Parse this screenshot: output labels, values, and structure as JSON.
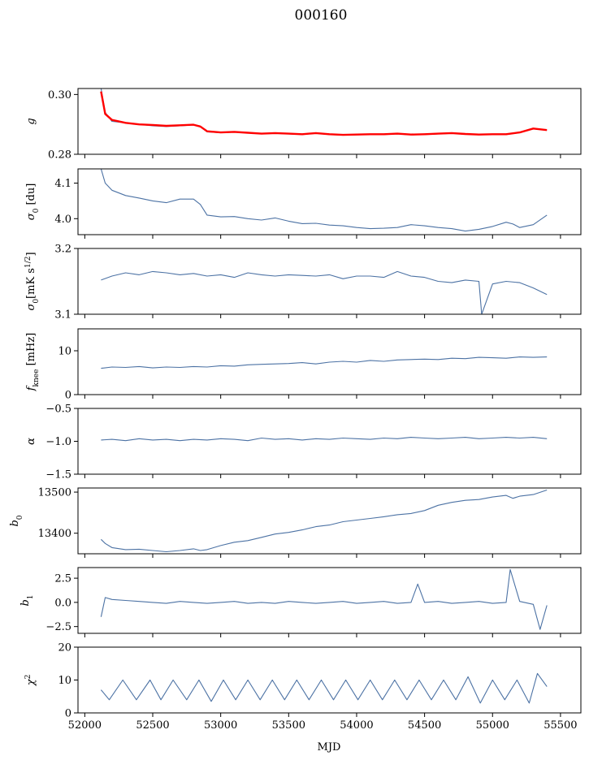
{
  "figure": {
    "title": "000160",
    "xlabel": "MJD"
  },
  "colors": {
    "series": "#4c72a4",
    "fit": "#ff0000",
    "axes": "#000000",
    "background": "#ffffff"
  },
  "chart_data": [
    {
      "type": "line",
      "panel": "g",
      "ylabel": "g",
      "ylabel_sub": "",
      "xlim": [
        51950,
        55650
      ],
      "ylim": [
        0.28,
        0.302
      ],
      "yticks": [
        0.28,
        0.3
      ],
      "ytick_labels": [
        "0.28",
        "0.30"
      ],
      "grid": false,
      "series": [
        {
          "color": "#4c72a4",
          "role": "data",
          "x": [
            52120,
            52150,
            52200,
            52300,
            52400,
            52500,
            52600,
            52700,
            52800,
            52850,
            52900,
            53000,
            53100,
            53200,
            53300,
            53400,
            53500,
            53600,
            53700,
            53800,
            53900,
            54000,
            54100,
            54200,
            54300,
            54400,
            54500,
            54600,
            54700,
            54800,
            54900,
            55000,
            55100,
            55200,
            55300,
            55400
          ],
          "y": [
            0.302,
            0.294,
            0.291,
            0.2905,
            0.29,
            0.2895,
            0.2893,
            0.2895,
            0.2898,
            0.2892,
            0.2875,
            0.2872,
            0.2875,
            0.2872,
            0.2868,
            0.287,
            0.2868,
            0.2866,
            0.287,
            0.2866,
            0.2864,
            0.2865,
            0.2866,
            0.2866,
            0.2868,
            0.2865,
            0.2866,
            0.2868,
            0.287,
            0.2867,
            0.2865,
            0.2866,
            0.2866,
            0.2872,
            0.2885,
            0.288
          ]
        },
        {
          "color": "#ff0000",
          "role": "fit",
          "x": [
            52120,
            52150,
            52200,
            52300,
            52400,
            52500,
            52600,
            52700,
            52800,
            52850,
            52900,
            53000,
            53100,
            53200,
            53300,
            53400,
            53500,
            53600,
            53700,
            53800,
            53900,
            54000,
            54100,
            54200,
            54300,
            54400,
            54500,
            54600,
            54700,
            54800,
            54900,
            55000,
            55100,
            55200,
            55300,
            55400
          ],
          "y": [
            0.301,
            0.2935,
            0.2915,
            0.2905,
            0.29,
            0.2898,
            0.2895,
            0.2897,
            0.2899,
            0.2893,
            0.2877,
            0.2873,
            0.2875,
            0.2872,
            0.2869,
            0.2871,
            0.2869,
            0.2867,
            0.2871,
            0.2867,
            0.2865,
            0.2866,
            0.2867,
            0.2867,
            0.2869,
            0.2866,
            0.2867,
            0.2869,
            0.2871,
            0.2868,
            0.2866,
            0.2867,
            0.2867,
            0.2873,
            0.2886,
            0.2881
          ]
        }
      ]
    },
    {
      "type": "line",
      "panel": "sigma0_du",
      "ylabel": "σ",
      "ylabel_sub": "0",
      "ylabel_rest": " [du]",
      "xlim": [
        51950,
        55650
      ],
      "ylim": [
        3.955,
        4.14
      ],
      "yticks": [
        4.0,
        4.1
      ],
      "ytick_labels": [
        "4.0",
        "4.1"
      ],
      "grid": false,
      "series": [
        {
          "color": "#4c72a4",
          "x": [
            52120,
            52150,
            52200,
            52300,
            52400,
            52500,
            52600,
            52700,
            52800,
            52850,
            52900,
            53000,
            53100,
            53200,
            53300,
            53400,
            53500,
            53600,
            53700,
            53800,
            53900,
            54000,
            54100,
            54200,
            54300,
            54400,
            54500,
            54600,
            54700,
            54800,
            54900,
            55000,
            55100,
            55150,
            55200,
            55300,
            55400
          ],
          "y": [
            4.14,
            4.1,
            4.08,
            4.065,
            4.058,
            4.05,
            4.045,
            4.055,
            4.055,
            4.04,
            4.01,
            4.005,
            4.006,
            4.0,
            3.996,
            4.002,
            3.993,
            3.986,
            3.987,
            3.982,
            3.98,
            3.975,
            3.972,
            3.973,
            3.975,
            3.983,
            3.98,
            3.975,
            3.972,
            3.965,
            3.97,
            3.978,
            3.99,
            3.985,
            3.975,
            3.983,
            4.01
          ]
        }
      ]
    },
    {
      "type": "line",
      "panel": "sigma0_mK",
      "ylabel": "σ",
      "ylabel_sub": "0",
      "ylabel_rest": "[mK s",
      "xlim": [
        51950,
        55650
      ],
      "ylim": [
        3.1,
        3.2
      ],
      "yticks": [
        3.1,
        3.2
      ],
      "ytick_labels": [
        "3.1",
        "3.2"
      ],
      "grid": false,
      "series": [
        {
          "color": "#4c72a4",
          "x": [
            52120,
            52200,
            52300,
            52400,
            52500,
            52600,
            52700,
            52800,
            52900,
            53000,
            53100,
            53200,
            53300,
            53400,
            53500,
            53600,
            53700,
            53800,
            53900,
            54000,
            54100,
            54200,
            54300,
            54400,
            54500,
            54600,
            54700,
            54800,
            54900,
            54920,
            55000,
            55100,
            55200,
            55300,
            55400
          ],
          "y": [
            3.152,
            3.158,
            3.163,
            3.16,
            3.165,
            3.163,
            3.16,
            3.162,
            3.158,
            3.16,
            3.156,
            3.163,
            3.16,
            3.158,
            3.16,
            3.159,
            3.158,
            3.16,
            3.154,
            3.158,
            3.158,
            3.156,
            3.165,
            3.158,
            3.156,
            3.15,
            3.148,
            3.152,
            3.15,
            3.1,
            3.146,
            3.15,
            3.148,
            3.14,
            3.13
          ]
        }
      ]
    },
    {
      "type": "line",
      "panel": "fknee",
      "ylabel": "f",
      "ylabel_sub": "knee",
      "ylabel_rest": " [mHz]",
      "xlim": [
        51950,
        55650
      ],
      "ylim": [
        0,
        15
      ],
      "yticks": [
        0,
        10
      ],
      "ytick_labels": [
        "0",
        "10"
      ],
      "grid": false,
      "series": [
        {
          "color": "#4c72a4",
          "x": [
            52120,
            52200,
            52300,
            52400,
            52500,
            52600,
            52700,
            52800,
            52900,
            53000,
            53100,
            53200,
            53300,
            53400,
            53500,
            53600,
            53700,
            53800,
            53900,
            54000,
            54100,
            54200,
            54300,
            54400,
            54500,
            54600,
            54700,
            54800,
            54900,
            55000,
            55100,
            55200,
            55300,
            55400
          ],
          "y": [
            6.0,
            6.3,
            6.2,
            6.4,
            6.1,
            6.3,
            6.2,
            6.4,
            6.3,
            6.6,
            6.5,
            6.8,
            6.9,
            7.0,
            7.1,
            7.3,
            7.0,
            7.4,
            7.6,
            7.4,
            7.8,
            7.6,
            7.9,
            8.0,
            8.1,
            8.0,
            8.3,
            8.2,
            8.5,
            8.4,
            8.3,
            8.6,
            8.5,
            8.6
          ]
        }
      ]
    },
    {
      "type": "line",
      "panel": "alpha",
      "ylabel": "α",
      "ylabel_sub": "",
      "xlim": [
        51950,
        55650
      ],
      "ylim": [
        -1.5,
        -0.5
      ],
      "yticks": [
        -1.5,
        -1.0,
        -0.5
      ],
      "ytick_labels": [
        "−1.5",
        "−1.0",
        "−0.5"
      ],
      "grid": false,
      "series": [
        {
          "color": "#4c72a4",
          "x": [
            52120,
            52200,
            52300,
            52400,
            52500,
            52600,
            52700,
            52800,
            52900,
            53000,
            53100,
            53200,
            53300,
            53400,
            53500,
            53600,
            53700,
            53800,
            53900,
            54000,
            54100,
            54200,
            54300,
            54400,
            54500,
            54600,
            54700,
            54800,
            54900,
            55000,
            55100,
            55200,
            55300,
            55400
          ],
          "y": [
            -0.98,
            -0.97,
            -0.99,
            -0.96,
            -0.98,
            -0.97,
            -0.99,
            -0.97,
            -0.98,
            -0.96,
            -0.97,
            -0.99,
            -0.95,
            -0.97,
            -0.96,
            -0.98,
            -0.96,
            -0.97,
            -0.95,
            -0.96,
            -0.97,
            -0.95,
            -0.96,
            -0.94,
            -0.95,
            -0.96,
            -0.95,
            -0.94,
            -0.96,
            -0.95,
            -0.94,
            -0.95,
            -0.94,
            -0.96
          ]
        }
      ]
    },
    {
      "type": "line",
      "panel": "b0",
      "ylabel": "b",
      "ylabel_sub": "0",
      "xlim": [
        51950,
        55650
      ],
      "ylim": [
        13350,
        13510
      ],
      "yticks": [
        13400,
        13500
      ],
      "ytick_labels": [
        "13400",
        "13500"
      ],
      "grid": false,
      "series": [
        {
          "color": "#4c72a4",
          "x": [
            52120,
            52150,
            52200,
            52300,
            52400,
            52500,
            52600,
            52700,
            52800,
            52850,
            52900,
            53000,
            53100,
            53200,
            53300,
            53400,
            53500,
            53600,
            53700,
            53800,
            53900,
            54000,
            54100,
            54200,
            54300,
            54400,
            54500,
            54600,
            54700,
            54800,
            54900,
            55000,
            55100,
            55150,
            55200,
            55300,
            55400
          ],
          "y": [
            13385,
            13375,
            13365,
            13360,
            13361,
            13358,
            13355,
            13358,
            13362,
            13358,
            13360,
            13370,
            13378,
            13382,
            13390,
            13398,
            13402,
            13408,
            13416,
            13420,
            13428,
            13432,
            13436,
            13440,
            13445,
            13448,
            13455,
            13468,
            13475,
            13480,
            13482,
            13488,
            13492,
            13485,
            13490,
            13494,
            13505
          ]
        }
      ]
    },
    {
      "type": "line",
      "panel": "b1",
      "ylabel": "b",
      "ylabel_sub": "1",
      "xlim": [
        51950,
        55650
      ],
      "ylim": [
        -3.2,
        3.6
      ],
      "yticks": [
        -2.5,
        0.0,
        2.5
      ],
      "ytick_labels": [
        "−2.5",
        "0.0",
        "2.5"
      ],
      "grid": false,
      "series": [
        {
          "color": "#4c72a4",
          "x": [
            52120,
            52150,
            52200,
            52300,
            52400,
            52500,
            52600,
            52700,
            52800,
            52900,
            53000,
            53100,
            53200,
            53300,
            53400,
            53500,
            53600,
            53700,
            53800,
            53900,
            54000,
            54100,
            54200,
            54300,
            54400,
            54450,
            54500,
            54600,
            54700,
            54800,
            54900,
            55000,
            55100,
            55130,
            55200,
            55300,
            55350,
            55400
          ],
          "y": [
            -1.5,
            0.5,
            0.3,
            0.2,
            0.1,
            0.0,
            -0.1,
            0.1,
            0.0,
            -0.1,
            0.0,
            0.1,
            -0.1,
            0.0,
            -0.1,
            0.1,
            0.0,
            -0.1,
            0.0,
            0.1,
            -0.1,
            0.0,
            0.1,
            -0.1,
            0.0,
            1.9,
            0.0,
            0.1,
            -0.1,
            0.0,
            0.1,
            -0.1,
            0.0,
            3.4,
            0.1,
            -0.2,
            -2.8,
            -0.3
          ]
        }
      ]
    },
    {
      "type": "line",
      "panel": "chi2",
      "ylabel": "χ",
      "ylabel_sup": "2",
      "xlim": [
        51950,
        55650
      ],
      "ylim": [
        0,
        20
      ],
      "yticks": [
        0,
        10,
        20
      ],
      "ytick_labels": [
        "0",
        "10",
        "20"
      ],
      "xticks": [
        52000,
        52500,
        53000,
        53500,
        54000,
        54500,
        55000,
        55500
      ],
      "xtick_labels": [
        "52000",
        "52500",
        "53000",
        "53500",
        "54000",
        "54500",
        "55000",
        "55500"
      ],
      "grid": false,
      "series": [
        {
          "color": "#4c72a4",
          "x": [
            52120,
            52180,
            52280,
            52380,
            52480,
            52560,
            52650,
            52750,
            52840,
            52930,
            53020,
            53110,
            53200,
            53290,
            53380,
            53470,
            53560,
            53650,
            53740,
            53830,
            53920,
            54010,
            54100,
            54190,
            54280,
            54370,
            54460,
            54550,
            54640,
            54730,
            54820,
            54910,
            55000,
            55090,
            55180,
            55270,
            55330,
            55400
          ],
          "y": [
            7,
            4,
            10,
            4,
            10,
            4,
            10,
            4,
            10,
            3.5,
            10,
            4,
            10,
            4,
            10,
            4,
            10,
            4,
            10,
            4,
            10,
            4,
            10,
            4,
            10,
            4,
            10,
            4,
            10,
            4,
            11,
            3,
            10,
            4,
            10,
            3,
            12,
            8
          ]
        }
      ]
    }
  ]
}
